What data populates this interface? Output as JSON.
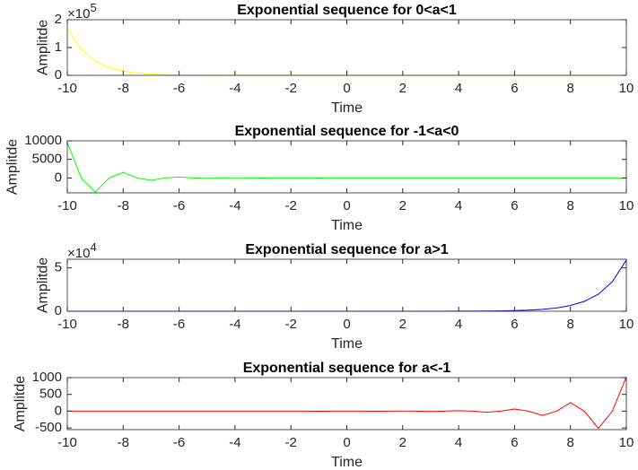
{
  "chart_data": [
    {
      "type": "line",
      "title": "Exponential sequence for 0<a<1",
      "xlabel": "Time",
      "ylabel": "Amplitde",
      "color": "#ffff00",
      "x": [
        -10,
        -9.5,
        -9,
        -8.5,
        -8,
        -7.5,
        -7,
        -6.5,
        -6,
        -5.5,
        -5,
        -4.5,
        -4,
        -3.5,
        -3,
        -2.5,
        -2,
        -1.5,
        -1,
        -0.5,
        0,
        0.5,
        1,
        1.5,
        2,
        2.5,
        3,
        3.5,
        4,
        4.5,
        5,
        5.5,
        6,
        6.5,
        7,
        7.5,
        8,
        8.5,
        9,
        9.5,
        10
      ],
      "values": [
        169351,
        92757,
        50805,
        27826,
        15242,
        8348,
        4573,
        2505,
        1372,
        751,
        412,
        225,
        123,
        68,
        37,
        20,
        11,
        6.1,
        3.3,
        1.8,
        1,
        0.55,
        0.3,
        0.16,
        0.09,
        0.05,
        0.03,
        0.01,
        0,
        0,
        0,
        0,
        0,
        0,
        0,
        0,
        0,
        0,
        0,
        0,
        0
      ],
      "xlim": [
        -10,
        10
      ],
      "xticks": [
        -10,
        -8,
        -6,
        -4,
        -2,
        0,
        2,
        4,
        6,
        8,
        10
      ],
      "ylim": [
        0,
        200000
      ],
      "yticks": [
        0,
        {
          "value": 100000,
          "label": "1"
        },
        {
          "value": 200000,
          "label": "2"
        }
      ],
      "y_exponent": {
        "base": "×10",
        "power": "5"
      }
    },
    {
      "type": "line",
      "title": "Exponential sequence for -1<a<0",
      "xlabel": "Time",
      "ylabel": "Amplitde",
      "color": "#00ff00",
      "x": [
        -10,
        -9.5,
        -9,
        -8.5,
        -8,
        -7.5,
        -7,
        -6.5,
        -6,
        -5.5,
        -5,
        -4.5,
        -4,
        -3.5,
        -3,
        -2.5,
        -2,
        -1.5,
        -1,
        -0.5,
        0,
        0.5,
        1,
        1.5,
        2,
        2.5,
        3,
        3.5,
        4,
        4.5,
        5,
        5.5,
        6,
        6.5,
        7,
        7.5,
        8,
        8.5,
        9,
        9.5,
        10
      ],
      "values": [
        9537,
        0,
        -3815,
        0,
        1526,
        0,
        -610,
        0,
        244,
        0,
        -98,
        0,
        39,
        0,
        -16,
        0,
        6.3,
        0,
        -2.5,
        0,
        1,
        0,
        -0.4,
        0,
        0.16,
        0,
        0,
        0,
        0,
        0,
        0,
        0,
        0,
        0,
        0,
        0,
        0,
        0,
        0,
        0,
        0
      ],
      "xlim": [
        -10,
        10
      ],
      "xticks": [
        -10,
        -8,
        -6,
        -4,
        -2,
        0,
        2,
        4,
        6,
        8,
        10
      ],
      "ylim": [
        -4000,
        10000
      ],
      "yticks": [
        0,
        5000,
        10000
      ]
    },
    {
      "type": "line",
      "title": "Exponential sequence for a>1",
      "xlabel": "Time",
      "ylabel": "Amplitde",
      "color": "#0000ff",
      "x": [
        -10,
        -9.5,
        -9,
        -8.5,
        -8,
        -7.5,
        -7,
        -6.5,
        -6,
        -5.5,
        -5,
        -4.5,
        -4,
        -3.5,
        -3,
        -2.5,
        -2,
        -1.5,
        -1,
        -0.5,
        0,
        0.5,
        1,
        1.5,
        2,
        2.5,
        3,
        3.5,
        4,
        4.5,
        5,
        5.5,
        6,
        6.5,
        7,
        7.5,
        8,
        8.5,
        9,
        9.5,
        10
      ],
      "values": [
        0,
        0,
        0,
        0,
        0,
        0,
        0,
        0,
        0,
        0,
        0,
        0,
        0,
        0,
        0.04,
        0.06,
        0.11,
        0.19,
        0.33,
        0.58,
        1,
        1.7,
        3,
        5.2,
        9,
        15.6,
        27,
        47,
        81,
        140,
        243,
        421,
        729,
        1263,
        2187,
        3788,
        6561,
        11364,
        19683,
        34092,
        59049
      ],
      "xlim": [
        -10,
        10
      ],
      "xticks": [
        -10,
        -8,
        -6,
        -4,
        -2,
        0,
        2,
        4,
        6,
        8,
        10
      ],
      "ylim": [
        0,
        60000
      ],
      "yticks": [
        0,
        {
          "value": 50000,
          "label": "5"
        }
      ],
      "y_exponent": {
        "base": "×10",
        "power": "4"
      }
    },
    {
      "type": "line",
      "title": "Exponential sequence for a<-1",
      "xlabel": "Time",
      "ylabel": "Amplitde",
      "color": "#ff0000",
      "x": [
        -10,
        -9.5,
        -9,
        -8.5,
        -8,
        -7.5,
        -7,
        -6.5,
        -6,
        -5.5,
        -5,
        -4.5,
        -4,
        -3.5,
        -3,
        -2.5,
        -2,
        -1.5,
        -1,
        -0.5,
        0,
        0.5,
        1,
        1.5,
        2,
        2.5,
        3,
        3.5,
        4,
        4.5,
        5,
        5.5,
        6,
        6.5,
        7,
        7.5,
        8,
        8.5,
        9,
        9.5,
        10
      ],
      "values": [
        0,
        0,
        0,
        0,
        0,
        0,
        0,
        0,
        0,
        0,
        0,
        0,
        0.06,
        0,
        -0.13,
        0,
        0.25,
        0,
        -0.5,
        0,
        1,
        0,
        -2,
        0,
        4,
        0,
        -8,
        0,
        16,
        0,
        -32,
        0,
        64,
        0,
        -128,
        0,
        256,
        0,
        -512,
        0,
        1024
      ],
      "xlim": [
        -10,
        10
      ],
      "xticks": [
        -10,
        -8,
        -6,
        -4,
        -2,
        0,
        2,
        4,
        6,
        8,
        10
      ],
      "ylim": [
        -550,
        1000
      ],
      "yticks": [
        -500,
        0,
        500,
        1000
      ]
    }
  ]
}
